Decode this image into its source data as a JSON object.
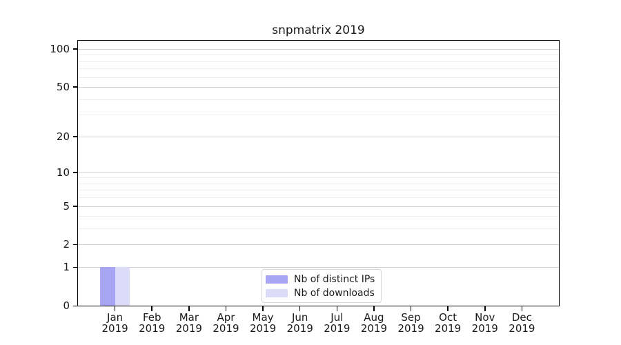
{
  "title": "snpmatrix 2019",
  "chart_data": {
    "type": "bar",
    "title": "snpmatrix 2019",
    "x": {
      "months": [
        "Jan",
        "Feb",
        "Mar",
        "Apr",
        "May",
        "Jun",
        "Jul",
        "Aug",
        "Sep",
        "Oct",
        "Nov",
        "Dec"
      ],
      "year": "2019"
    },
    "series": [
      {
        "name": "Nb of distinct IPs",
        "color": "#a6a6f4",
        "values": [
          1,
          0,
          0,
          0,
          0,
          0,
          0,
          0,
          0,
          0,
          0,
          0
        ]
      },
      {
        "name": "Nb of downloads",
        "color": "#dcdcf9",
        "values": [
          1,
          0,
          0,
          0,
          0,
          0,
          0,
          0,
          0,
          0,
          0,
          0
        ]
      }
    ],
    "yscale": "log1p",
    "ylim": [
      0,
      116
    ],
    "y_major_ticks": [
      0,
      1,
      2,
      5,
      10,
      20,
      50,
      100
    ],
    "y_minor_ticks": [
      3,
      4,
      6,
      7,
      8,
      9,
      30,
      40,
      60,
      70,
      80,
      90
    ],
    "grid": true,
    "legend_position": "lower center",
    "colors": {
      "major_grid": "#cfcfcf",
      "minor_grid": "#ededed",
      "spine": "#000000",
      "text": "#1a1a1a",
      "background": "#ffffff"
    }
  }
}
